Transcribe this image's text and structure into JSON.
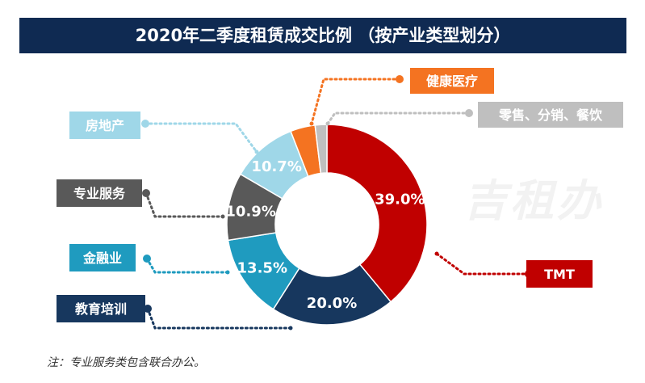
{
  "title": "2020年二季度租赁成交比例 （按产业类型划分）",
  "note": "注：专业服务类包含联合办公。",
  "watermark": "吉租办",
  "chart_data": {
    "type": "pie",
    "title": "2020年二季度租赁成交比例 （按产业类型划分）",
    "unit": "%",
    "slices": [
      {
        "name": "TMT",
        "value": 39.0,
        "label": "39.0%",
        "color": "#c00000"
      },
      {
        "name": "教育培训",
        "value": 20.0,
        "label": "20.0%",
        "color": "#17375e"
      },
      {
        "name": "金融业",
        "value": 13.5,
        "label": "13.5%",
        "color": "#1f9bbf"
      },
      {
        "name": "专业服务",
        "value": 10.9,
        "label": "10.9%",
        "color": "#595959"
      },
      {
        "name": "房地产",
        "value": 10.7,
        "label": "10.7%",
        "color": "#9fd7e8"
      },
      {
        "name": "健康医疗",
        "value": 4.0,
        "label": "",
        "color": "#f47321"
      },
      {
        "name": "零售、分销、餐饮",
        "value": 1.9,
        "label": "",
        "color": "#bfbfbf"
      }
    ]
  }
}
